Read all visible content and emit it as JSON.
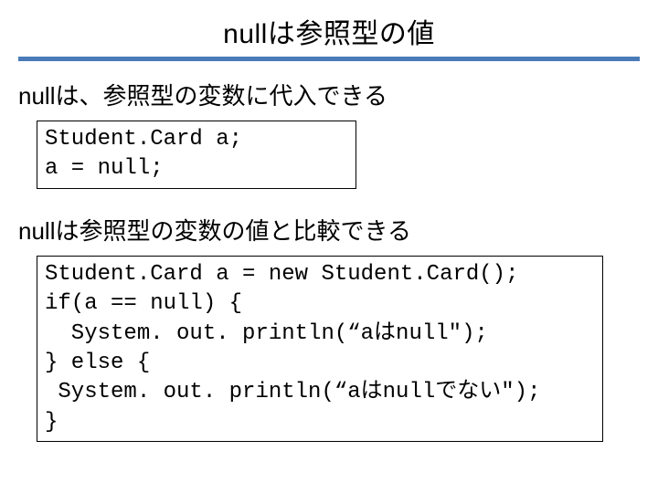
{
  "title": "nullは参照型の値",
  "rule_color": "#4a7bb8",
  "section1": {
    "lead": "nullは、参照型の変数に代入できる",
    "code": "Student.Card a;\na = null;"
  },
  "section2": {
    "lead": "nullは参照型の変数の値と比較できる",
    "code": "Student.Card a = new Student.Card();\nif(a == null) {\n  System. out. println(“aはnull\");\n} else {\n System. out. println(“aはnullでない\");\n}"
  }
}
